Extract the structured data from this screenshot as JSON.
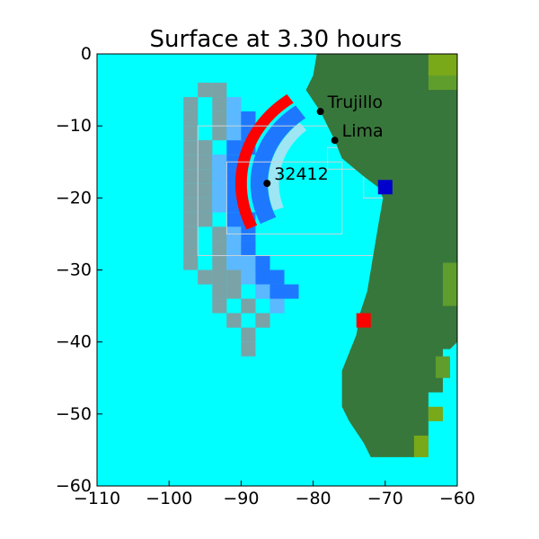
{
  "chart_data": {
    "type": "heatmap",
    "title": "Surface at 3.30 hours",
    "xlabel": "",
    "ylabel": "",
    "xlim": [
      -110,
      -60
    ],
    "ylim": [
      -60,
      0
    ],
    "xticks": [
      -110,
      -100,
      -90,
      -80,
      -70,
      -60
    ],
    "yticks": [
      0,
      -10,
      -20,
      -30,
      -40,
      -50,
      -60
    ],
    "xtick_labels": [
      "−110",
      "−100",
      "−90",
      "−80",
      "−70",
      "−60"
    ],
    "ytick_labels": [
      "0",
      "−10",
      "−20",
      "−30",
      "−40",
      "−50",
      "−60"
    ],
    "grid": false,
    "colors": {
      "water": "#00ffff",
      "land": "#38773b",
      "land_light": "#5f9d2d",
      "land_yellow": "#79a818",
      "crest": "#ff0000",
      "crest_faded": "#c8686a",
      "trough": "#1e78ff",
      "trough_light": "#5cb8ff",
      "trough_faint": "#9ee6f4",
      "grey_wave": "#7aa3a8",
      "deep_trough": "#0000cc",
      "grid_patch_outline": "#c8d4d8"
    },
    "land_polygon": [
      [
        -79.5,
        0
      ],
      [
        -60,
        0
      ],
      [
        -60,
        -40
      ],
      [
        -61,
        -41
      ],
      [
        -62,
        -41
      ],
      [
        -62,
        -47
      ],
      [
        -64,
        -47
      ],
      [
        -64,
        -54
      ],
      [
        -66,
        -56
      ],
      [
        -72,
        -56
      ],
      [
        -73,
        -54
      ],
      [
        -75,
        -51
      ],
      [
        -76,
        -49
      ],
      [
        -76,
        -44
      ],
      [
        -74,
        -39
      ],
      [
        -73.5,
        -36
      ],
      [
        -72.5,
        -33
      ],
      [
        -72,
        -30
      ],
      [
        -71,
        -24
      ],
      [
        -70.3,
        -20
      ],
      [
        -71,
        -18.5
      ],
      [
        -73,
        -17
      ],
      [
        -76,
        -14.5
      ],
      [
        -77,
        -12
      ],
      [
        -79,
        -8
      ],
      [
        -81,
        -5
      ],
      [
        -80,
        -3
      ],
      [
        -79.5,
        0
      ]
    ],
    "land_light_patches": [
      {
        "x": [
          -64,
          -60
        ],
        "y": [
          -5,
          -2
        ]
      },
      {
        "x": [
          -64,
          -60
        ],
        "y": [
          -3,
          0
        ]
      },
      {
        "x": [
          -62,
          -60
        ],
        "y": [
          -35,
          -29
        ]
      },
      {
        "x": [
          -64,
          -62
        ],
        "y": [
          -51,
          -49
        ]
      },
      {
        "x": [
          -63,
          -61
        ],
        "y": [
          -45,
          -42
        ]
      },
      {
        "x": [
          -66,
          -64
        ],
        "y": [
          -56,
          -53
        ]
      }
    ],
    "crest_band": {
      "center": [
        -74,
        -18
      ],
      "radius_deg": 16,
      "angle_from_deg": 125,
      "angle_to_deg": 205,
      "thickness_deg": 1.6
    },
    "trough_band": {
      "center": [
        -74,
        -18
      ],
      "radius_deg": 13.5,
      "angle_from_deg": 125,
      "angle_to_deg": 205,
      "thickness_deg": 2.4
    },
    "outer_rings": [
      {
        "radius_deg": 21,
        "color": "grey_wave"
      },
      {
        "radius_deg": 24,
        "color": "grey_wave"
      },
      {
        "radius_deg": 18.5,
        "color": "trough_light"
      },
      {
        "radius_deg": 16.5,
        "color": "trough"
      }
    ],
    "extra_cells": [
      {
        "lon": -73,
        "lat": -37,
        "color": "crest"
      },
      {
        "lon": -70,
        "lat": -18.5,
        "color": "deep_trough"
      }
    ],
    "grid_patches": [
      {
        "x": [
          -96,
          -66
        ],
        "y": [
          -28,
          -10
        ]
      },
      {
        "x": [
          -92,
          -76
        ],
        "y": [
          -25,
          -15
        ]
      },
      {
        "x": [
          -78,
          -73
        ],
        "y": [
          -16,
          -13
        ]
      },
      {
        "x": [
          -73,
          -69
        ],
        "y": [
          -20,
          -17
        ]
      }
    ],
    "points": [
      {
        "label": "Trujillo",
        "lon": -79,
        "lat": -8
      },
      {
        "label": "Lima",
        "lon": -77,
        "lat": -12
      },
      {
        "label": "32412",
        "lon": -86.4,
        "lat": -17.98
      }
    ]
  }
}
